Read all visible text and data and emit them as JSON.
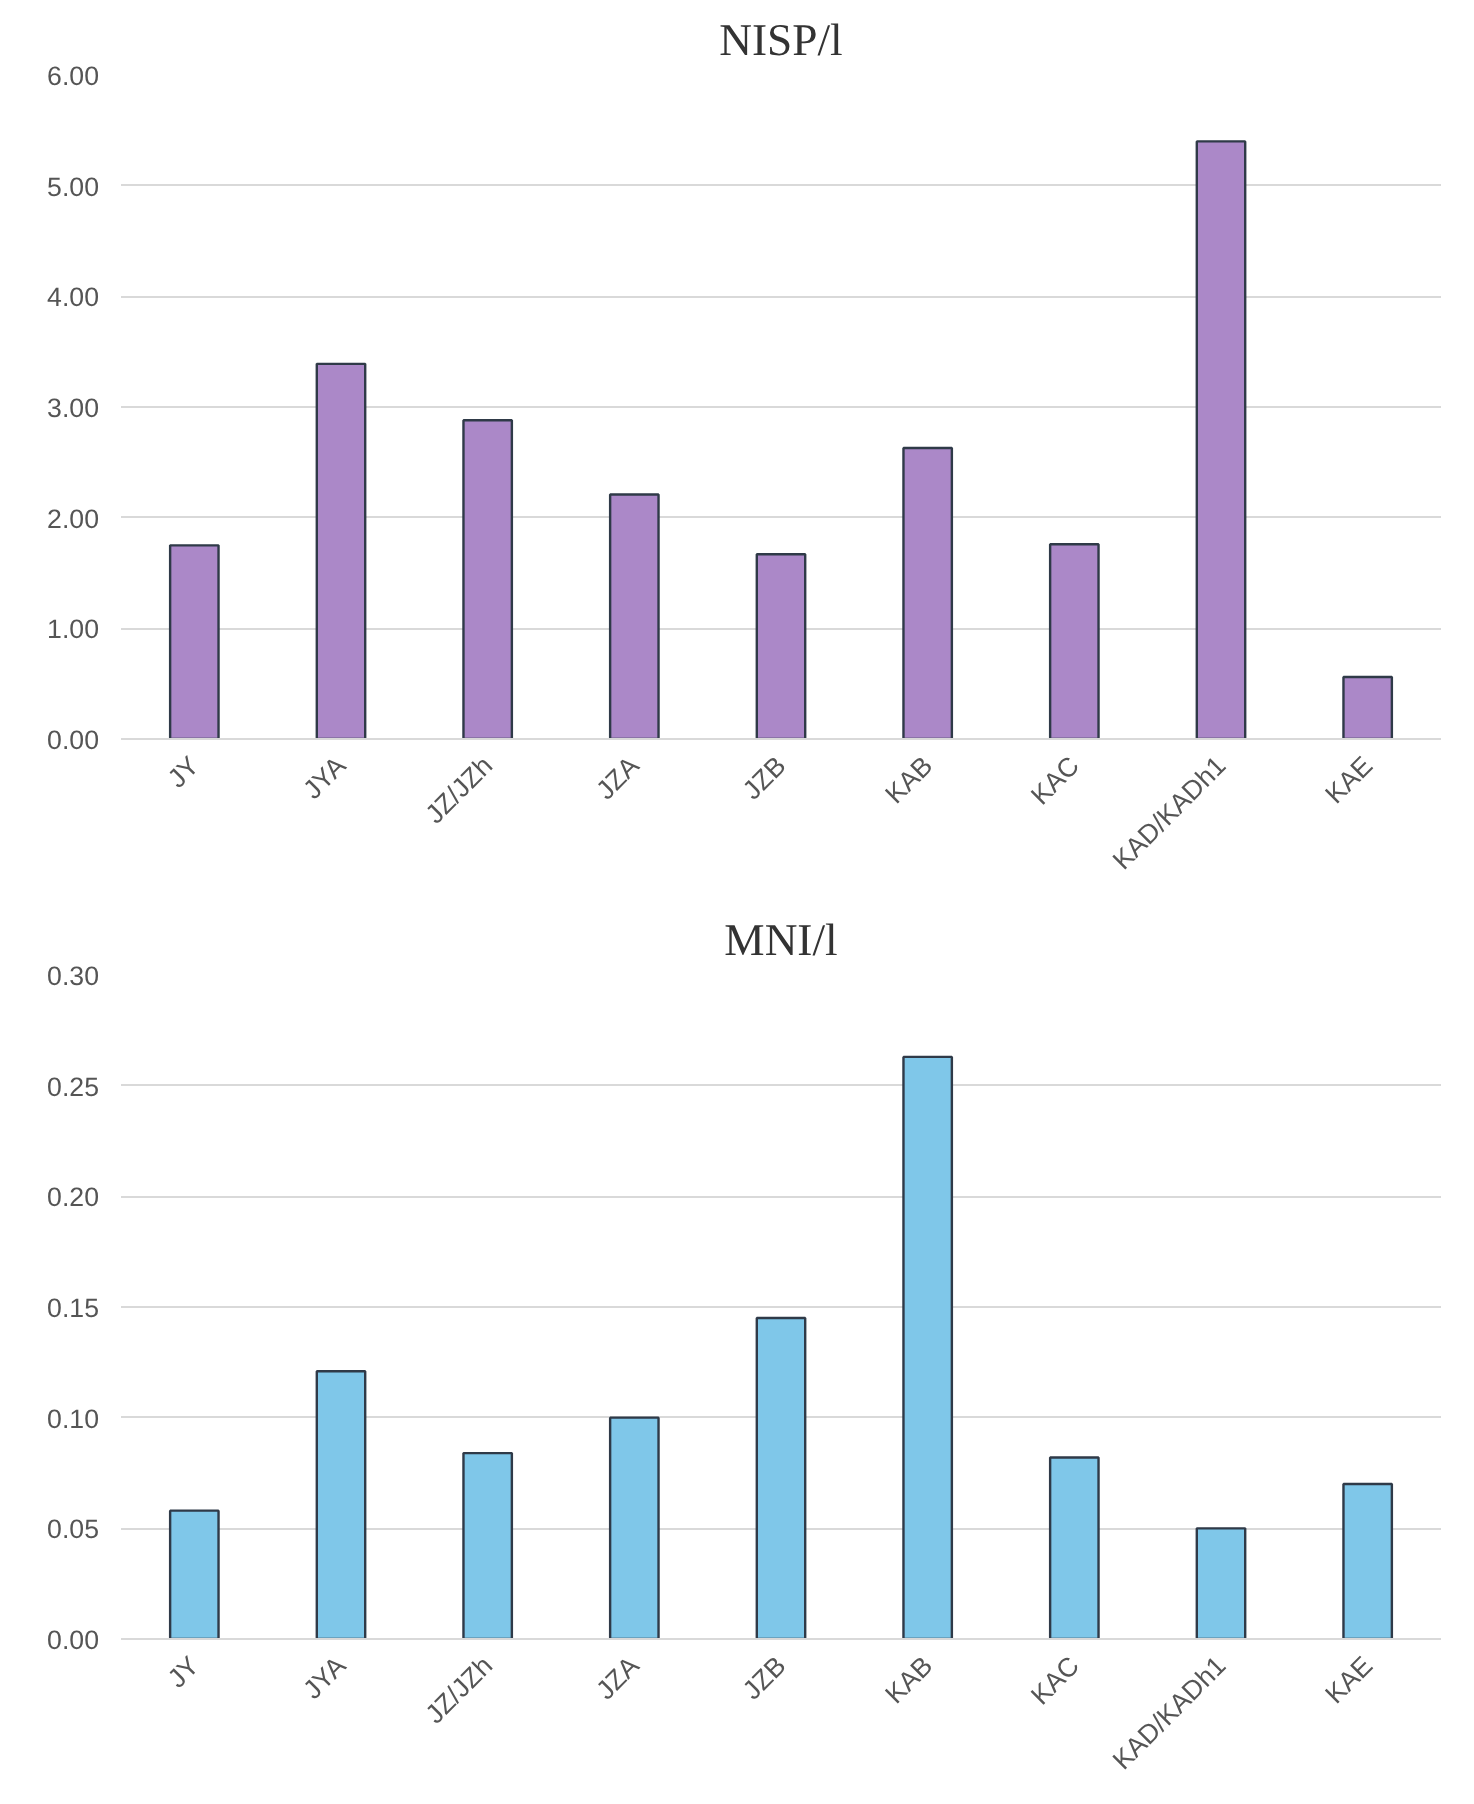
{
  "chart_data": [
    {
      "type": "bar",
      "title": "NISP/l",
      "categories": [
        "JY",
        "JYA",
        "JZ/JZh",
        "JZA",
        "JZB",
        "KAB",
        "KAC",
        "KAD/KADh1",
        "KAE"
      ],
      "values": [
        1.75,
        3.39,
        2.88,
        2.21,
        1.67,
        2.63,
        1.76,
        5.4,
        0.56
      ],
      "color": "#ab88c8",
      "ylim": [
        0,
        6
      ],
      "yticks": [
        {
          "value": 0,
          "label": "0.00"
        },
        {
          "value": 1,
          "label": "1.00"
        },
        {
          "value": 2,
          "label": "2.00"
        },
        {
          "value": 3,
          "label": "3.00"
        },
        {
          "value": 4,
          "label": "4.00"
        },
        {
          "value": 5,
          "label": "5.00"
        },
        {
          "value": 6,
          "label": "6.00"
        }
      ],
      "grid": "y"
    },
    {
      "type": "bar",
      "title": "MNI/l",
      "categories": [
        "JY",
        "JYA",
        "JZ/JZh",
        "JZA",
        "JZB",
        "KAB",
        "KAC",
        "KAD/KADh1",
        "KAE"
      ],
      "values": [
        0.058,
        0.121,
        0.084,
        0.1,
        0.145,
        0.263,
        0.082,
        0.05,
        0.07
      ],
      "color": "#7fc7e9",
      "ylim": [
        0,
        0.3
      ],
      "yticks": [
        {
          "value": 0,
          "label": "0.00"
        },
        {
          "value": 0.05,
          "label": "0.05"
        },
        {
          "value": 0.1,
          "label": "0.10"
        },
        {
          "value": 0.15,
          "label": "0.15"
        },
        {
          "value": 0.2,
          "label": "0.20"
        },
        {
          "value": 0.25,
          "label": "0.25"
        },
        {
          "value": 0.3,
          "label": "0.30"
        }
      ],
      "grid": "y"
    }
  ]
}
